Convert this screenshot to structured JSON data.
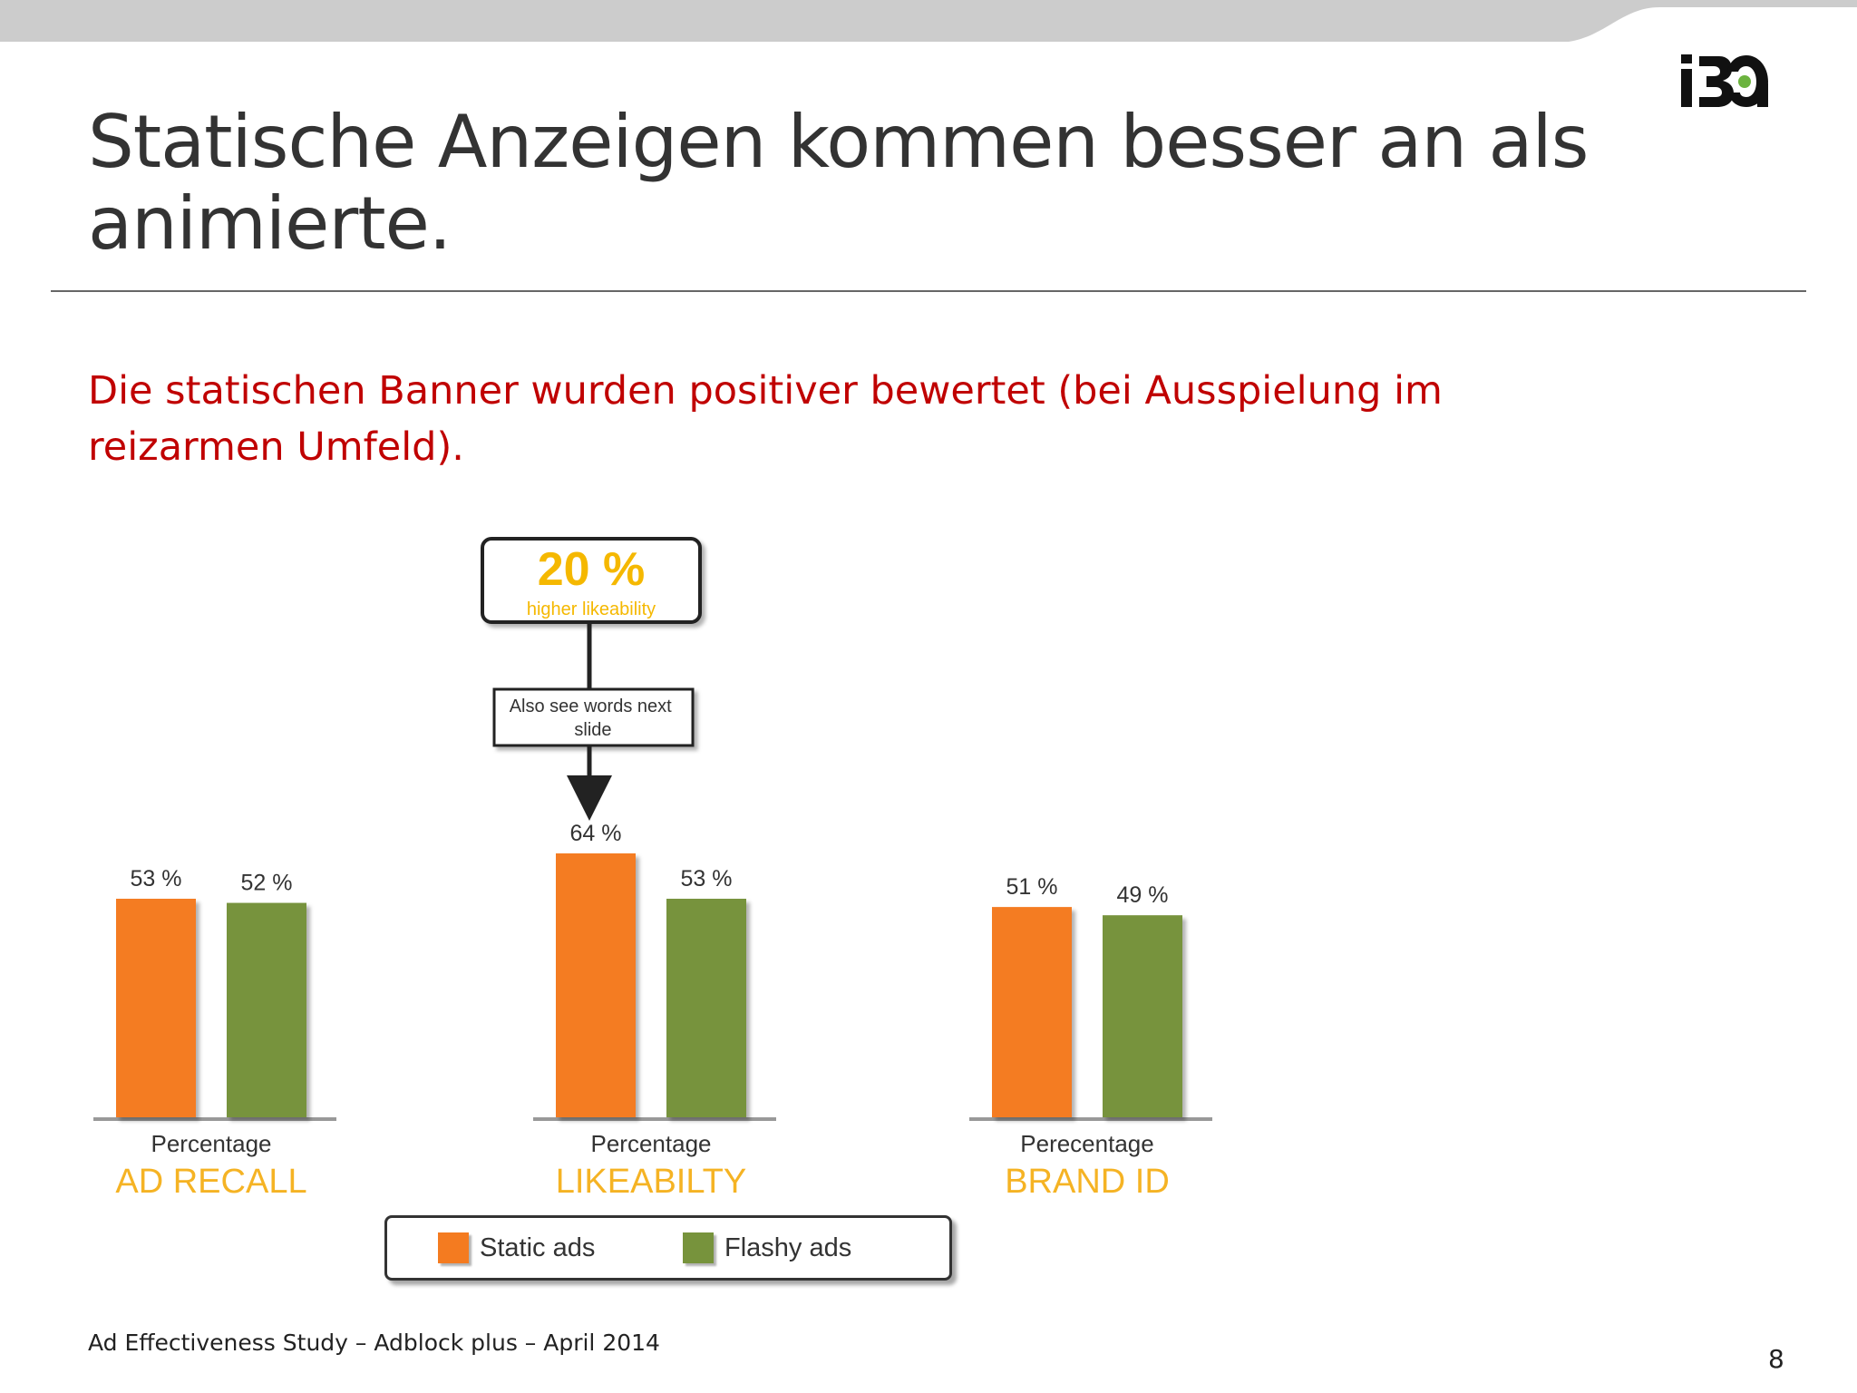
{
  "slide": {
    "title": "Statische Anzeigen kommen besser an als animierte.",
    "subtitle": "Die statischen Banner wurden positiver bewertet (bei Ausspielung im reizarmen Umfeld).",
    "footer": "Ad Effectiveness Study – Adblock plus – April 2014",
    "page_number": "8",
    "logo_icon": "iba-logo-icon",
    "colors": {
      "accent_red": "#c00000",
      "title_text": "#333333",
      "top_band": "#cccccc",
      "logo_dot": "#6cb33f"
    }
  },
  "chart_data": {
    "type": "bar",
    "groups": [
      {
        "axis_label": "Percentage",
        "category": "AD RECALL",
        "values": [
          53,
          52
        ],
        "labels": [
          "53 %",
          "52 %"
        ]
      },
      {
        "axis_label": "Percentage",
        "category": "LIKEABILTY",
        "values": [
          64,
          53
        ],
        "labels": [
          "64 %",
          "53 %"
        ]
      },
      {
        "axis_label": "Perecentage",
        "category": "BRAND ID",
        "values": [
          51,
          49
        ],
        "labels": [
          "51 %",
          "49 %"
        ]
      }
    ],
    "series": [
      {
        "name": "Static ads",
        "color": "#f47b20"
      },
      {
        "name": "Flashy ads",
        "color": "#77933c"
      }
    ],
    "category_color": "#f5b324",
    "ylim": [
      0,
      64
    ],
    "legend_position": "bottom",
    "annotation": {
      "headline": "20 %",
      "headline_color": "#f5b800",
      "subtext": "higher likeability",
      "note": "Also see words next slide"
    }
  }
}
